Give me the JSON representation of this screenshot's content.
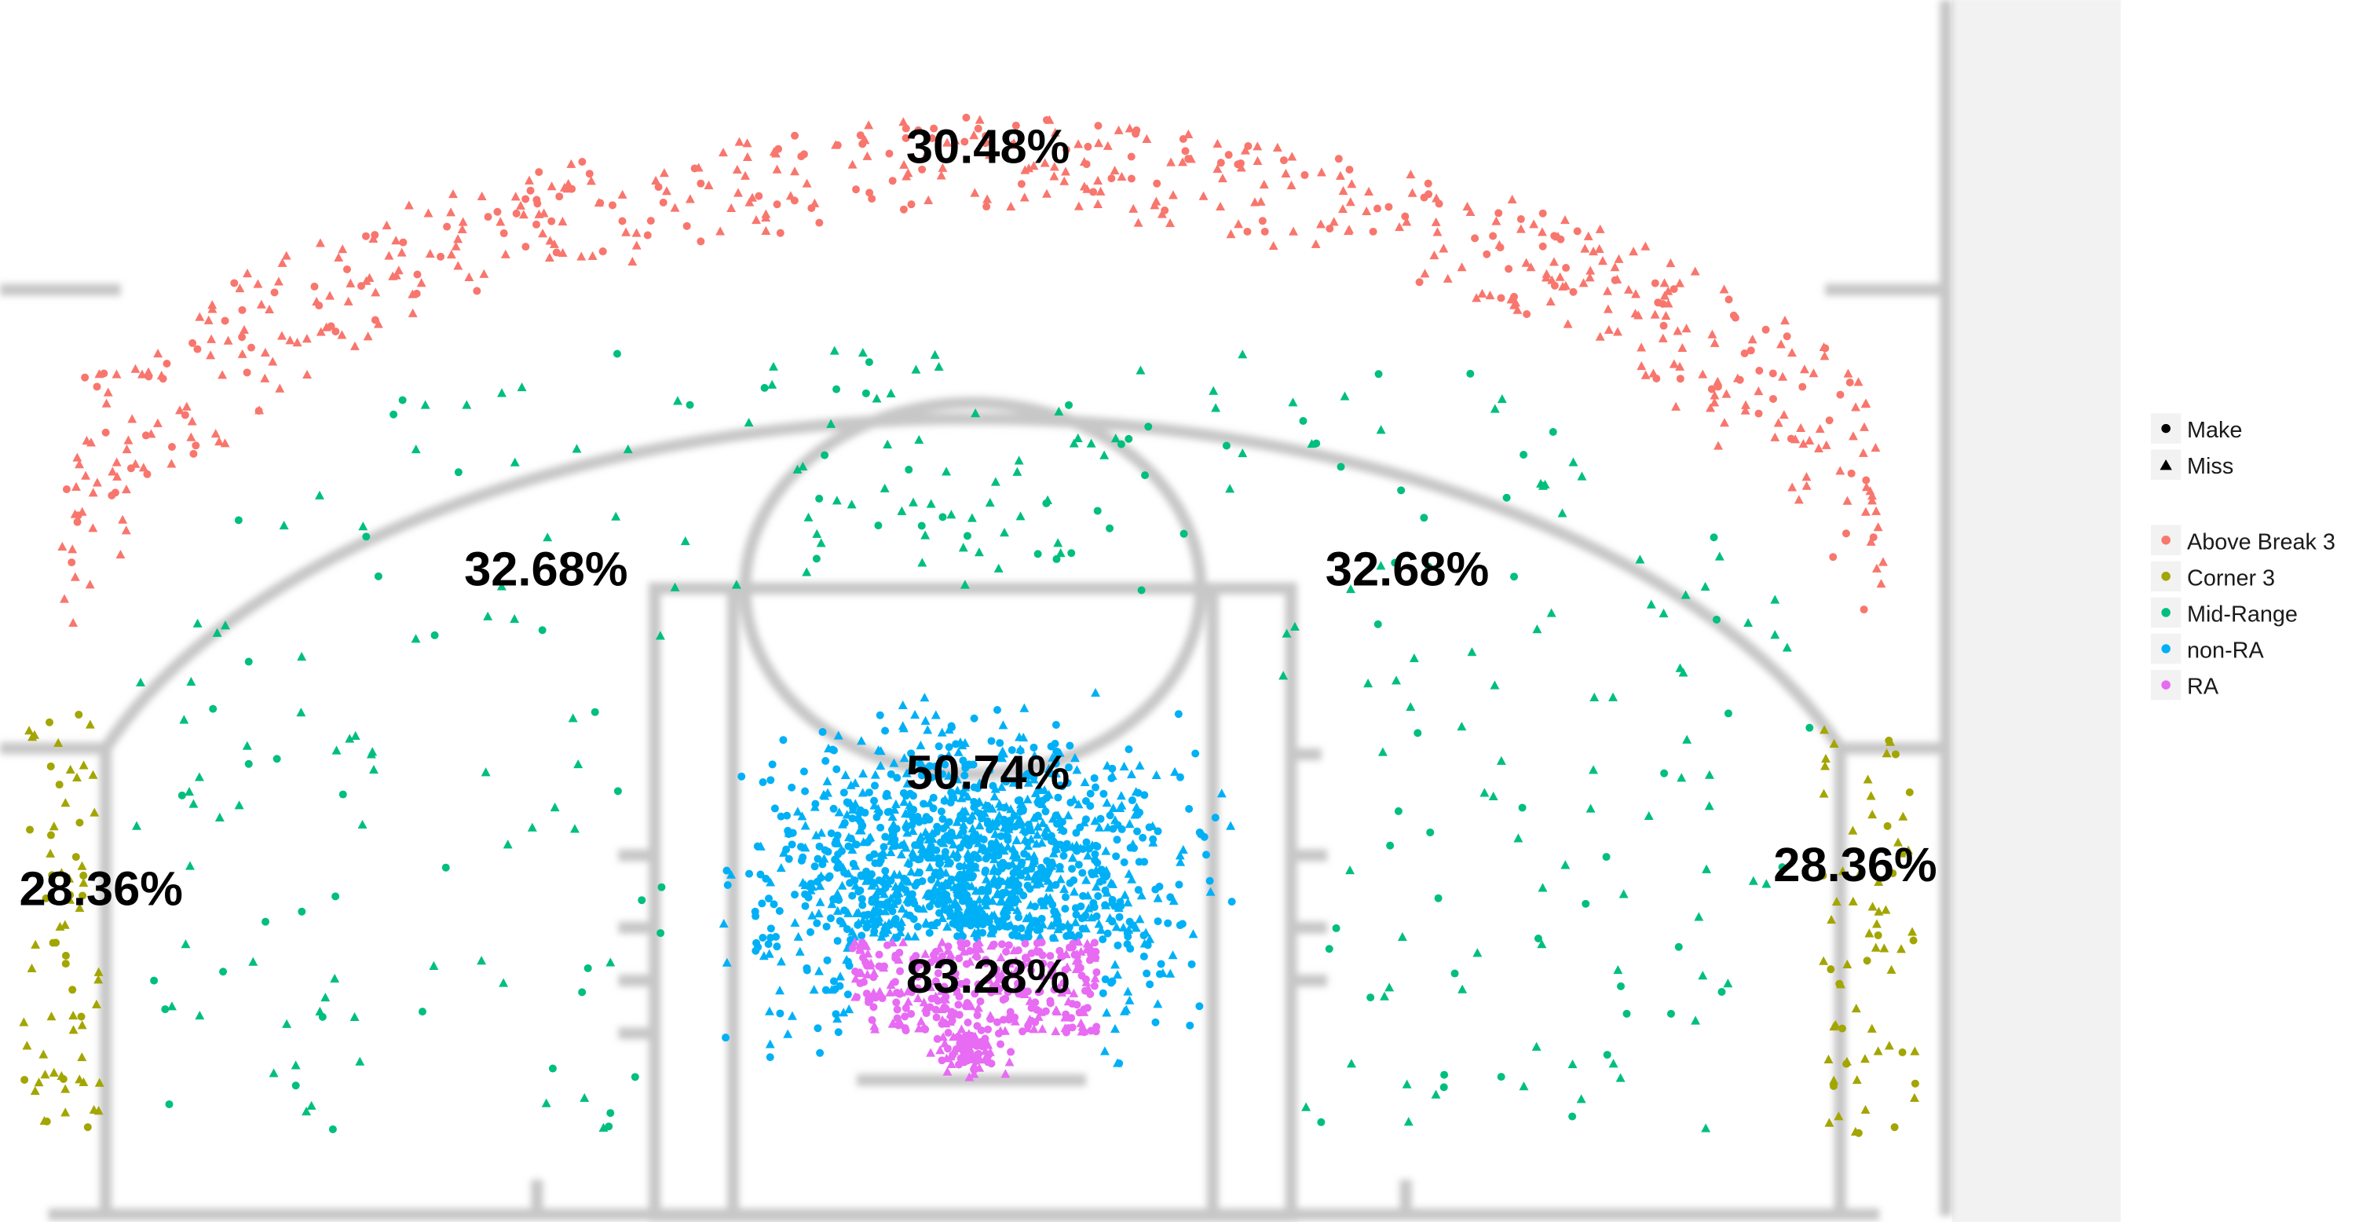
{
  "chart_data": {
    "type": "scatter",
    "title": "",
    "xlabel": "",
    "ylabel": "",
    "grid": false,
    "legend_position": "right",
    "shape_legend": [
      {
        "name": "Make",
        "shape": "circle"
      },
      {
        "name": "Miss",
        "shape": "triangle"
      }
    ],
    "zone_legend": [
      {
        "name": "Above Break 3",
        "color": "#F8766D"
      },
      {
        "name": "Corner 3",
        "color": "#A3A500"
      },
      {
        "name": "Mid-Range",
        "color": "#00BF7D"
      },
      {
        "name": "non-RA",
        "color": "#00B0F6"
      },
      {
        "name": "RA",
        "color": "#E76BF3"
      }
    ],
    "zone_percentages": [
      {
        "zone": "Above Break 3",
        "label": "30.48%",
        "value": 30.48
      },
      {
        "zone": "Mid-Range (left)",
        "label": "32.68%",
        "value": 32.68
      },
      {
        "zone": "Mid-Range (right)",
        "label": "32.68%",
        "value": 32.68
      },
      {
        "zone": "non-RA",
        "label": "50.74%",
        "value": 50.74
      },
      {
        "zone": "RA",
        "label": "83.28%",
        "value": 83.28
      },
      {
        "zone": "Corner 3 (left)",
        "label": "28.36%",
        "value": 28.36
      },
      {
        "zone": "Corner 3 (right)",
        "label": "28.36%",
        "value": 28.36
      }
    ]
  }
}
